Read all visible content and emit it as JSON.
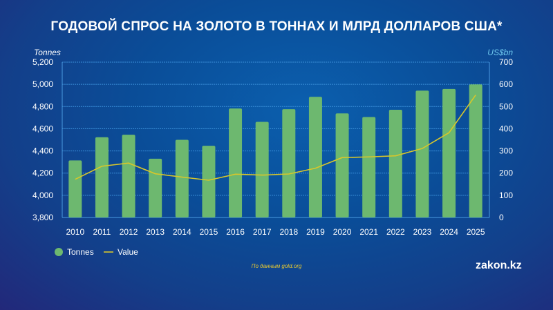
{
  "chart_data": {
    "type": "bar+line",
    "title": "ГОДОВОЙ СПРОС НА ЗОЛОТО В ТОННАХ И МЛРД ДОЛЛАРОВ США*",
    "categories": [
      "2010",
      "2011",
      "2012",
      "2013",
      "2014",
      "2015",
      "2016",
      "2017",
      "2018",
      "2019",
      "2020",
      "2021",
      "2022",
      "2023",
      "2024",
      "2025"
    ],
    "series": [
      {
        "name": "Tonnes",
        "type": "bar",
        "axis": "left",
        "color": "#6db86f",
        "values": [
          4314,
          4523,
          4546,
          4330,
          4500,
          4446,
          4782,
          4662,
          4776,
          4887,
          4738,
          4705,
          4771,
          4943,
          4958,
          4999
        ]
      },
      {
        "name": "Value",
        "type": "line",
        "axis": "right",
        "color": "#d8c72a",
        "values": [
          172,
          231,
          245,
          197,
          182,
          168,
          195,
          191,
          196,
          222,
          270,
          273,
          278,
          311,
          382,
          552
        ]
      }
    ],
    "left_axis": {
      "label": "Tonnes",
      "ylim": [
        3800,
        5200
      ],
      "ticks": [
        "3,800",
        "4,000",
        "4,200",
        "4,400",
        "4,600",
        "4,800",
        "5,000",
        "5,200"
      ]
    },
    "right_axis": {
      "label": "US$bn",
      "ylim": [
        0,
        700
      ],
      "ticks": [
        "0",
        "100",
        "200",
        "300",
        "400",
        "500",
        "600",
        "700"
      ]
    },
    "grid": true,
    "legend": "bottom-left",
    "source": "По данным gold.org",
    "brand": "zakon.kz"
  }
}
